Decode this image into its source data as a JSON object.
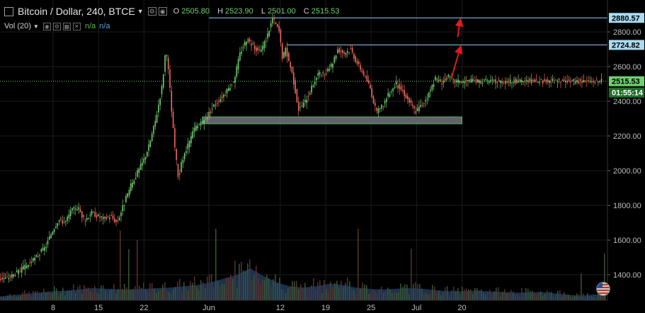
{
  "header": {
    "symbol_title": "Bitcoin / Dollar, 240, BTCE",
    "ohlc": {
      "o_label": "O",
      "o_value": "2505.80",
      "h_label": "H",
      "h_value": "2523.90",
      "l_label": "L",
      "l_value": "2501.00",
      "c_label": "C",
      "c_value": "2515.53"
    },
    "volume_label": "Vol (20)",
    "volume_na1": "n/a",
    "volume_na2": "n/a"
  },
  "colors": {
    "up": "#6fd06f",
    "down": "#f06a5a",
    "background": "#000000",
    "level_line": "#8fd0ff",
    "support_zone": "#6d6d78",
    "price_label_bg": "#a9dcf2",
    "current_price_bg": "#6fd06f",
    "arrow": "#e01b1b",
    "volume_area": "#1f3a5c"
  },
  "chart_data": {
    "type": "candlestick",
    "title": "Bitcoin / Dollar, 240, BTCE",
    "y_axis_ticks": [
      1400,
      1600,
      1800,
      2000,
      2200,
      2400,
      2600,
      2800
    ],
    "y_axis_tick_labels": [
      "1400.00",
      "1600.00",
      "1800.00",
      "2000.00",
      "2200.00",
      "2400.00",
      "2600.00",
      "2800.00"
    ],
    "ylim": [
      1290,
      2940
    ],
    "x_axis_ticks": [
      "2017-05-08",
      "2017-05-15",
      "2017-05-22",
      "2017-06-01",
      "2017-06-12",
      "2017-06-19",
      "2017-06-26",
      "2017-07-03",
      "2017-07-10"
    ],
    "x_axis_tick_labels": [
      "8",
      "15",
      "22",
      "Jun",
      "12",
      "19",
      "25",
      "Jul",
      "20"
    ],
    "price_path": [
      {
        "x": "2017-05-01",
        "y": 1380
      },
      {
        "x": "2017-05-03",
        "y": 1420
      },
      {
        "x": "2017-05-05",
        "y": 1480
      },
      {
        "x": "2017-05-07",
        "y": 1560
      },
      {
        "x": "2017-05-08",
        "y": 1650
      },
      {
        "x": "2017-05-09",
        "y": 1720
      },
      {
        "x": "2017-05-10",
        "y": 1700
      },
      {
        "x": "2017-05-11",
        "y": 1770
      },
      {
        "x": "2017-05-12",
        "y": 1790
      },
      {
        "x": "2017-05-13",
        "y": 1710
      },
      {
        "x": "2017-05-14",
        "y": 1760
      },
      {
        "x": "2017-05-16",
        "y": 1720
      },
      {
        "x": "2017-05-17",
        "y": 1740
      },
      {
        "x": "2017-05-18",
        "y": 1700
      },
      {
        "x": "2017-05-19",
        "y": 1800
      },
      {
        "x": "2017-05-20",
        "y": 1900
      },
      {
        "x": "2017-05-21",
        "y": 1980
      },
      {
        "x": "2017-05-22",
        "y": 2050
      },
      {
        "x": "2017-05-23",
        "y": 2150
      },
      {
        "x": "2017-05-24",
        "y": 2300
      },
      {
        "x": "2017-05-25",
        "y": 2500
      },
      {
        "x": "2017-05-25T12:00",
        "y": 2700
      },
      {
        "x": "2017-05-26",
        "y": 2550
      },
      {
        "x": "2017-05-26T12:00",
        "y": 2300
      },
      {
        "x": "2017-05-27",
        "y": 2100
      },
      {
        "x": "2017-05-27T12:00",
        "y": 1950
      },
      {
        "x": "2017-05-28",
        "y": 2050
      },
      {
        "x": "2017-05-29",
        "y": 2150
      },
      {
        "x": "2017-05-30",
        "y": 2250
      },
      {
        "x": "2017-05-31",
        "y": 2270
      },
      {
        "x": "2017-06-01",
        "y": 2320
      },
      {
        "x": "2017-06-02",
        "y": 2380
      },
      {
        "x": "2017-06-03",
        "y": 2420
      },
      {
        "x": "2017-06-04",
        "y": 2460
      },
      {
        "x": "2017-06-05",
        "y": 2520
      },
      {
        "x": "2017-06-06",
        "y": 2680
      },
      {
        "x": "2017-06-07",
        "y": 2760
      },
      {
        "x": "2017-06-08",
        "y": 2720
      },
      {
        "x": "2017-06-09",
        "y": 2680
      },
      {
        "x": "2017-06-10",
        "y": 2760
      },
      {
        "x": "2017-06-11",
        "y": 2880
      },
      {
        "x": "2017-06-12",
        "y": 2800
      },
      {
        "x": "2017-06-12T12:00",
        "y": 2650
      },
      {
        "x": "2017-06-13",
        "y": 2700
      },
      {
        "x": "2017-06-14",
        "y": 2560
      },
      {
        "x": "2017-06-15",
        "y": 2350
      },
      {
        "x": "2017-06-16",
        "y": 2400
      },
      {
        "x": "2017-06-17",
        "y": 2480
      },
      {
        "x": "2017-06-18",
        "y": 2560
      },
      {
        "x": "2017-06-19",
        "y": 2550
      },
      {
        "x": "2017-06-20",
        "y": 2600
      },
      {
        "x": "2017-06-21",
        "y": 2700
      },
      {
        "x": "2017-06-22",
        "y": 2680
      },
      {
        "x": "2017-06-23",
        "y": 2700
      },
      {
        "x": "2017-06-24",
        "y": 2620
      },
      {
        "x": "2017-06-25",
        "y": 2560
      },
      {
        "x": "2017-06-26",
        "y": 2480
      },
      {
        "x": "2017-06-27",
        "y": 2330
      },
      {
        "x": "2017-06-28",
        "y": 2380
      },
      {
        "x": "2017-06-29",
        "y": 2450
      },
      {
        "x": "2017-06-30",
        "y": 2500
      },
      {
        "x": "2017-07-01",
        "y": 2460
      },
      {
        "x": "2017-07-02",
        "y": 2400
      },
      {
        "x": "2017-07-03",
        "y": 2340
      },
      {
        "x": "2017-07-04",
        "y": 2380
      },
      {
        "x": "2017-07-05",
        "y": 2440
      },
      {
        "x": "2017-07-06",
        "y": 2530
      },
      {
        "x": "2017-07-07",
        "y": 2510
      },
      {
        "x": "2017-07-08",
        "y": 2540
      },
      {
        "x": "2017-07-09",
        "y": 2515
      }
    ],
    "horizontal_levels": [
      {
        "value": 2880.57,
        "label": "2880.57"
      },
      {
        "value": 2724.82,
        "label": "2724.82"
      }
    ],
    "current_price": {
      "value": 2515.53,
      "label": "2515.53",
      "countdown": "01:55:14"
    },
    "support_zone": {
      "from": "2017-05-31",
      "to": "2017-07-10",
      "y_low": 2270,
      "y_high": 2310
    },
    "arrows": [
      {
        "from": {
          "x": "2017-07-09",
          "y": 2530
        },
        "to": {
          "x": "2017-07-10",
          "y": 2724.82
        }
      },
      {
        "from": {
          "x": "2017-07-10",
          "y": 2770
        },
        "to": {
          "x": "2017-07-10",
          "y": 2880.57
        }
      }
    ],
    "volume_profile": [
      6,
      8,
      10,
      12,
      14,
      15,
      17,
      19,
      18,
      17,
      17,
      18,
      19,
      20,
      22,
      24,
      28,
      34,
      40,
      50,
      38,
      28,
      22,
      20,
      22,
      26,
      24,
      20,
      18,
      17,
      18,
      19,
      18,
      16,
      14,
      14,
      15,
      14,
      13,
      12,
      12,
      13,
      11,
      9,
      7,
      9,
      10
    ],
    "grid": true,
    "legend": "none"
  }
}
